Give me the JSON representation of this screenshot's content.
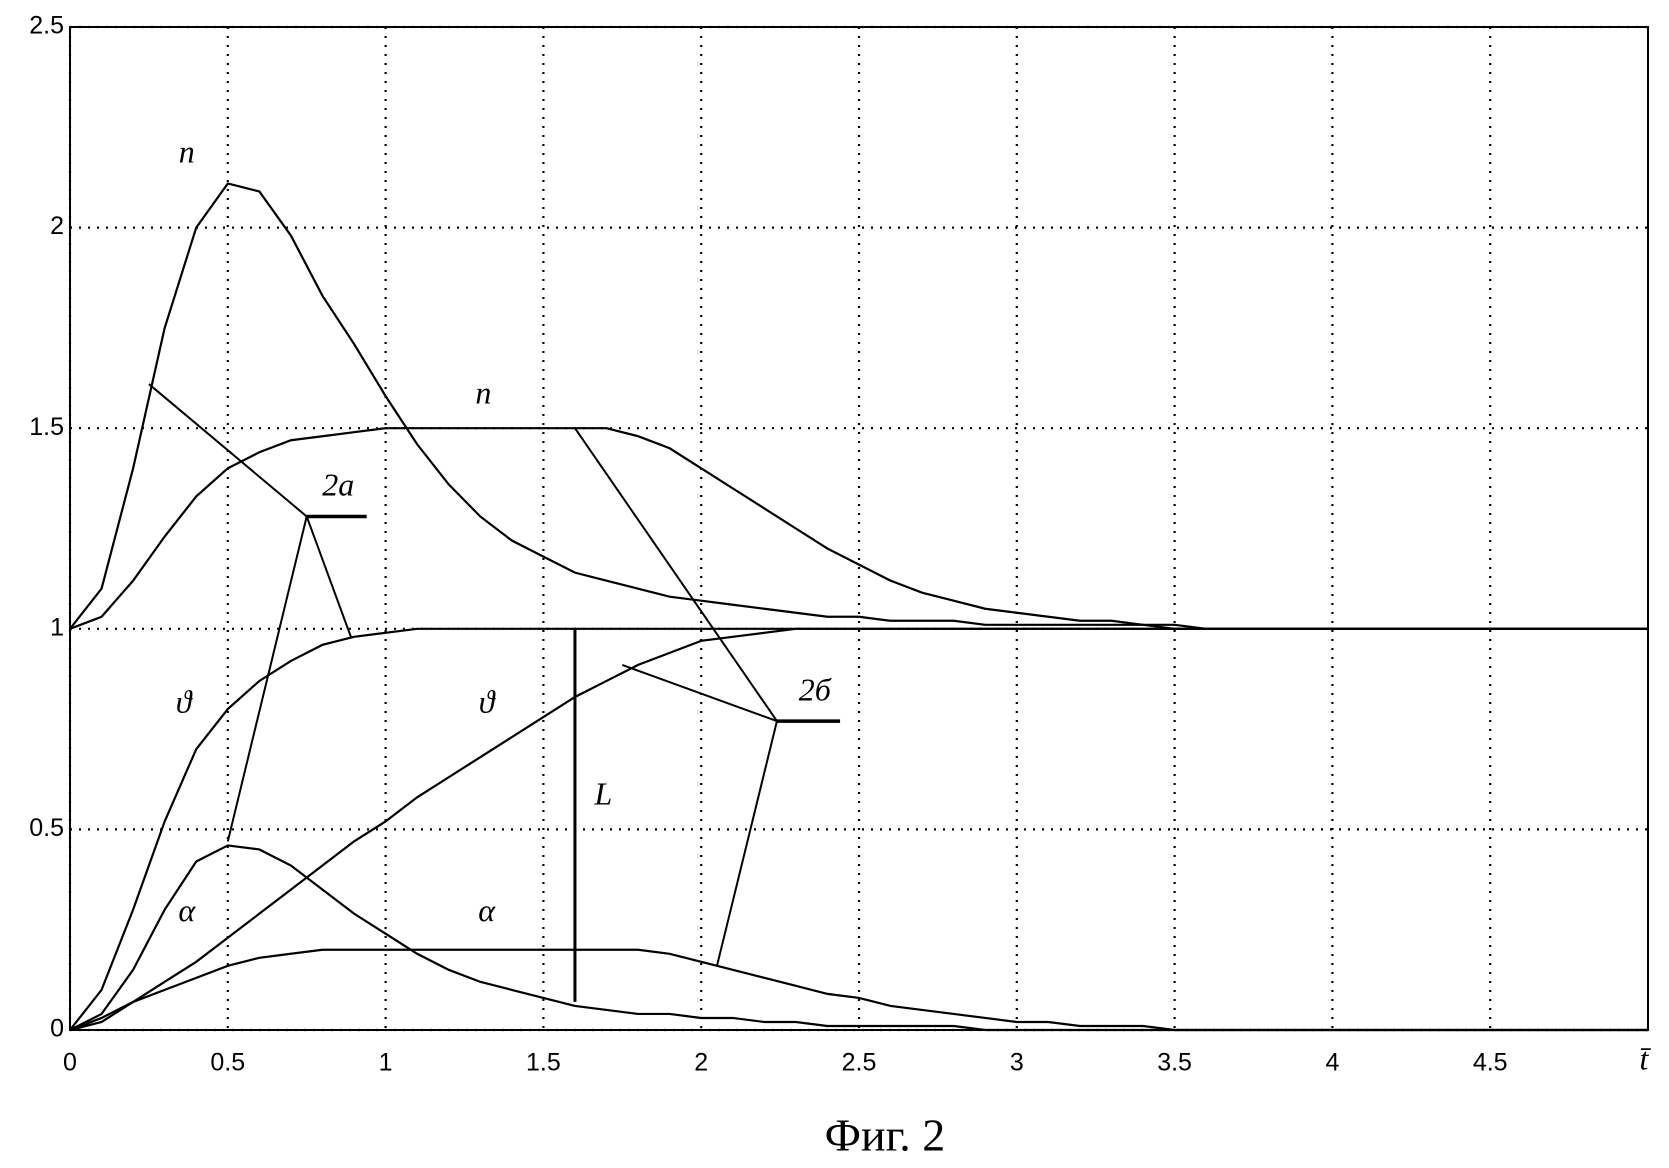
{
  "chart_data": {
    "type": "line",
    "title": "Фиг. 2",
    "xlabel": "t̄",
    "x": [
      0,
      0.1,
      0.2,
      0.3,
      0.4,
      0.5,
      0.6,
      0.7,
      0.8,
      0.9,
      1,
      1.1,
      1.2,
      1.3,
      1.4,
      1.5,
      1.6,
      1.7,
      1.8,
      1.9,
      2,
      2.1,
      2.2,
      2.3,
      2.4,
      2.5,
      2.6,
      2.7,
      2.8,
      2.9,
      3,
      3.1,
      3.2,
      3.3,
      3.4,
      3.5,
      3.6,
      3.7,
      3.8,
      3.9,
      4,
      4.1,
      4.2,
      4.3,
      4.4,
      4.5,
      4.6,
      4.7,
      4.8,
      4.9,
      5
    ],
    "series": [
      {
        "name": "n",
        "color": "#000000",
        "values": [
          1.0,
          1.1,
          1.4,
          1.75,
          2.0,
          2.11,
          2.09,
          1.98,
          1.83,
          1.71,
          1.58,
          1.46,
          1.36,
          1.28,
          1.22,
          1.18,
          1.14,
          1.12,
          1.1,
          1.08,
          1.07,
          1.06,
          1.05,
          1.04,
          1.03,
          1.03,
          1.02,
          1.02,
          1.02,
          1.01,
          1.01,
          1.01,
          1.01,
          1.01,
          1.01,
          1,
          1,
          1,
          1,
          1,
          1,
          1,
          1,
          1,
          1,
          1,
          1,
          1,
          1,
          1,
          1
        ]
      },
      {
        "name": "n",
        "color": "#000000",
        "values": [
          1.0,
          1.03,
          1.12,
          1.23,
          1.33,
          1.4,
          1.44,
          1.47,
          1.48,
          1.49,
          1.5,
          1.5,
          1.5,
          1.5,
          1.5,
          1.5,
          1.5,
          1.5,
          1.48,
          1.45,
          1.4,
          1.35,
          1.3,
          1.25,
          1.2,
          1.16,
          1.12,
          1.09,
          1.07,
          1.05,
          1.04,
          1.03,
          1.02,
          1.02,
          1.01,
          1.01,
          1,
          1,
          1,
          1,
          1,
          1,
          1,
          1,
          1,
          1,
          1,
          1,
          1,
          1,
          1
        ]
      },
      {
        "name": "ϑ",
        "color": "#000000",
        "values": [
          0,
          0.1,
          0.3,
          0.52,
          0.7,
          0.8,
          0.87,
          0.92,
          0.96,
          0.98,
          0.99,
          1,
          1,
          1,
          1,
          1,
          1,
          1,
          1,
          1,
          1,
          1,
          1,
          1,
          1,
          1,
          1,
          1,
          1,
          1,
          1,
          1,
          1,
          1,
          1,
          1,
          1,
          1,
          1,
          1,
          1,
          1,
          1,
          1,
          1,
          1,
          1,
          1,
          1,
          1,
          1
        ]
      },
      {
        "name": "ϑ",
        "color": "#000000",
        "values": [
          0,
          0.02,
          0.07,
          0.12,
          0.17,
          0.23,
          0.29,
          0.35,
          0.41,
          0.47,
          0.52,
          0.58,
          0.63,
          0.68,
          0.73,
          0.78,
          0.83,
          0.87,
          0.91,
          0.94,
          0.97,
          0.98,
          0.99,
          1,
          1,
          1,
          1,
          1,
          1,
          1,
          1,
          1,
          1,
          1,
          1,
          1,
          1,
          1,
          1,
          1,
          1,
          1,
          1,
          1,
          1,
          1,
          1,
          1,
          1,
          1,
          1
        ]
      },
      {
        "name": "α",
        "color": "#000000",
        "values": [
          0,
          0.04,
          0.15,
          0.3,
          0.42,
          0.46,
          0.45,
          0.41,
          0.35,
          0.29,
          0.24,
          0.19,
          0.15,
          0.12,
          0.1,
          0.08,
          0.06,
          0.05,
          0.04,
          0.04,
          0.03,
          0.03,
          0.02,
          0.02,
          0.01,
          0.01,
          0.01,
          0.01,
          0.01,
          0,
          0,
          0,
          0,
          0,
          0,
          0,
          0,
          0,
          0,
          0,
          0,
          0,
          0,
          0,
          0,
          0,
          0,
          0,
          0,
          0,
          0
        ]
      },
      {
        "name": "α",
        "color": "#000000",
        "values": [
          0,
          0.03,
          0.07,
          0.1,
          0.13,
          0.16,
          0.18,
          0.19,
          0.2,
          0.2,
          0.2,
          0.2,
          0.2,
          0.2,
          0.2,
          0.2,
          0.2,
          0.2,
          0.2,
          0.19,
          0.17,
          0.15,
          0.13,
          0.11,
          0.09,
          0.08,
          0.06,
          0.05,
          0.04,
          0.03,
          0.02,
          0.02,
          0.01,
          0.01,
          0.01,
          0,
          0,
          0,
          0,
          0,
          0,
          0,
          0,
          0,
          0,
          0,
          0,
          0,
          0,
          0,
          0
        ]
      }
    ],
    "annotations": [
      "L",
      "2а",
      "2б"
    ],
    "xlim": [
      0,
      5
    ],
    "ylim": [
      0,
      2.5
    ],
    "xticks": [
      0,
      0.5,
      1,
      1.5,
      2,
      2.5,
      3,
      3.5,
      4,
      4.5
    ],
    "yticks": [
      0,
      0.5,
      1,
      1.5,
      2,
      2.5
    ],
    "grid": true
  }
}
